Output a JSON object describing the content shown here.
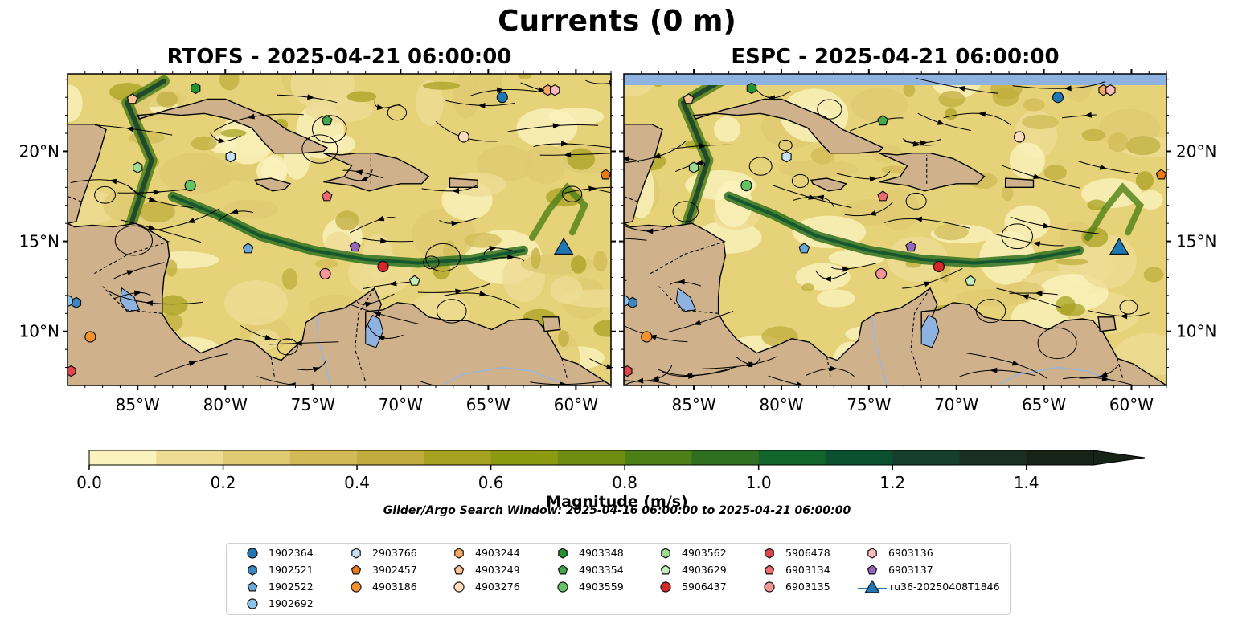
{
  "title": "Currents (0 m)",
  "panels": [
    {
      "title": "RTOFS - 2025-04-21 06:00:00"
    },
    {
      "title": "ESPC - 2025-04-21 06:00:00"
    }
  ],
  "map_extent": {
    "lon_min": -89.0,
    "lon_max": -58.0,
    "lat_min": 7.0,
    "lat_max": 24.3
  },
  "lon_ticks": [
    "85°W",
    "80°W",
    "75°W",
    "70°W",
    "65°W",
    "60°W"
  ],
  "lat_ticks": [
    "20°N",
    "15°N",
    "10°N"
  ],
  "colorbar": {
    "label": "Magnitude (m/s)",
    "range": [
      0.0,
      1.5
    ],
    "extend": "max",
    "tick_labels": [
      "0.0",
      "0.2",
      "0.4",
      "0.6",
      "0.8",
      "1.0",
      "1.2",
      "1.4"
    ],
    "colors": [
      "#fbf3bd",
      "#eedc95",
      "#e0cb72",
      "#d2bb56",
      "#c0ad3e",
      "#a8a223",
      "#8c9a12",
      "#6f8d10",
      "#4d7f17",
      "#2f7020",
      "#11652c",
      "#0b5130",
      "#163e2e",
      "#1a2f22",
      "#162317"
    ]
  },
  "search_window": "Glider/Argo Search Window: 2025-04-16 06:00:00 to 2025-04-21 06:00:00",
  "legend": [
    {
      "label": "1902364",
      "marker": "circle",
      "color": "#1f77b4"
    },
    {
      "label": "1902521",
      "marker": "hexagon",
      "color": "#3e86c2"
    },
    {
      "label": "1902522",
      "marker": "pentagon",
      "color": "#6aa8d9"
    },
    {
      "label": "1902692",
      "marker": "circle",
      "color": "#8fc2ea"
    },
    {
      "label": "2903766",
      "marker": "hexagon",
      "color": "#c7e3f6"
    },
    {
      "label": "3902457",
      "marker": "pentagon",
      "color": "#ee7b12"
    },
    {
      "label": "4903186",
      "marker": "circle",
      "color": "#f7912e"
    },
    {
      "label": "4903244",
      "marker": "hexagon",
      "color": "#f8a861"
    },
    {
      "label": "4903249",
      "marker": "pentagon",
      "color": "#fbc391"
    },
    {
      "label": "4903276",
      "marker": "circle",
      "color": "#fddcbc"
    },
    {
      "label": "4903348",
      "marker": "hexagon",
      "color": "#23922f"
    },
    {
      "label": "4903354",
      "marker": "pentagon",
      "color": "#41ab4a"
    },
    {
      "label": "4903559",
      "marker": "circle",
      "color": "#63c562"
    },
    {
      "label": "4903562",
      "marker": "hexagon",
      "color": "#9fdc92"
    },
    {
      "label": "4903629",
      "marker": "pentagon",
      "color": "#c6f0bb"
    },
    {
      "label": "5906437",
      "marker": "circle",
      "color": "#d62728"
    },
    {
      "label": "5906478",
      "marker": "hexagon",
      "color": "#e2454b"
    },
    {
      "label": "6903134",
      "marker": "pentagon",
      "color": "#ee6a6e"
    },
    {
      "label": "6903135",
      "marker": "circle",
      "color": "#f59597"
    },
    {
      "label": "6903136",
      "marker": "hexagon",
      "color": "#fbbcbd"
    },
    {
      "label": "6903137",
      "marker": "pentagon",
      "color": "#9467bd"
    },
    {
      "label": "ru36-20250408T1846",
      "marker": "triangle",
      "color": "#1f77b4"
    }
  ],
  "floats": [
    {
      "id": "1902364",
      "lon": -64.2,
      "lat": 23.0
    },
    {
      "id": "1902521",
      "lon": -88.5,
      "lat": 11.6
    },
    {
      "id": "1902522",
      "lon": -78.7,
      "lat": 14.6
    },
    {
      "id": "1902692",
      "lon": -89.0,
      "lat": 11.7
    },
    {
      "id": "2903766",
      "lon": -79.7,
      "lat": 19.7
    },
    {
      "id": "3902457",
      "lon": -58.3,
      "lat": 18.7
    },
    {
      "id": "4903186",
      "lon": -87.7,
      "lat": 9.7
    },
    {
      "id": "4903244",
      "lon": -61.6,
      "lat": 23.4
    },
    {
      "id": "4903249",
      "lon": -85.3,
      "lat": 22.9
    },
    {
      "id": "4903276",
      "lon": -66.4,
      "lat": 20.8
    },
    {
      "id": "4903348",
      "lon": -81.7,
      "lat": 23.5
    },
    {
      "id": "4903354",
      "lon": -74.2,
      "lat": 21.7
    },
    {
      "id": "4903559",
      "lon": -82.0,
      "lat": 18.1
    },
    {
      "id": "4903562",
      "lon": -85.0,
      "lat": 19.1
    },
    {
      "id": "4903629",
      "lon": -69.2,
      "lat": 12.8
    },
    {
      "id": "5906437",
      "lon": -71.0,
      "lat": 13.6
    },
    {
      "id": "5906478",
      "lon": -88.8,
      "lat": 7.8
    },
    {
      "id": "6903134",
      "lon": -74.2,
      "lat": 17.5
    },
    {
      "id": "6903135",
      "lon": -74.3,
      "lat": 13.2
    },
    {
      "id": "6903136",
      "lon": -61.2,
      "lat": 23.4
    },
    {
      "id": "6903137",
      "lon": -72.6,
      "lat": 14.7
    },
    {
      "id": "ru36-20250408T1846",
      "lon": -60.7,
      "lat": 14.7
    }
  ]
}
